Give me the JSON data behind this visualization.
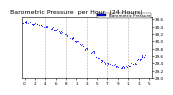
{
  "title": "Barometric Pressure  per Hour  (24 Hours)",
  "background_color": "#ffffff",
  "plot_background": "#ffffff",
  "line_color": "#0000ff",
  "grid_color": "#999999",
  "ylim": [
    29.0,
    30.65
  ],
  "xlim": [
    -0.5,
    24.5
  ],
  "ytick_vals": [
    29.0,
    29.2,
    29.4,
    29.6,
    29.8,
    30.0,
    30.2,
    30.4,
    30.6
  ],
  "ytick_labels": [
    "29.0",
    "29.2",
    "29.4",
    "29.6",
    "29.8",
    "30.0",
    "30.2",
    "30.4",
    "30.6"
  ],
  "xtick_vals": [
    0,
    2,
    4,
    6,
    8,
    10,
    12,
    14,
    16,
    18,
    20,
    22,
    24
  ],
  "xtick_labels": [
    "0",
    "2",
    "4",
    "6",
    "8",
    "1",
    "3",
    "5",
    "7",
    "9",
    "1",
    "3",
    "5"
  ],
  "pressure_data": [
    30.52,
    30.5,
    30.48,
    30.44,
    30.4,
    30.35,
    30.3,
    30.25,
    30.18,
    30.1,
    30.0,
    29.9,
    29.8,
    29.7,
    29.58,
    29.47,
    29.4,
    29.35,
    29.32,
    29.3,
    29.33,
    29.4,
    29.5,
    29.6
  ],
  "legend_label": "Barometric Pressure",
  "marker_size": 1.5,
  "title_fontsize": 4.5,
  "tick_fontsize": 3.0,
  "legend_fontsize": 3.0,
  "grid_vlines": [
    4,
    8,
    12,
    16,
    20
  ]
}
